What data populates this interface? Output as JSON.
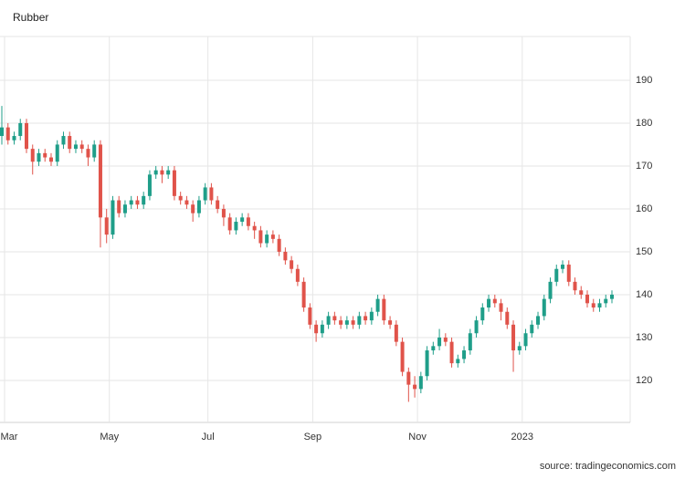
{
  "chart_data": {
    "type": "candlestick",
    "title": "Rubber",
    "source": "source: tradingeconomics.com",
    "categories": [
      "Mar",
      null,
      null,
      null,
      null,
      null,
      null,
      null,
      null,
      null,
      null,
      null,
      null,
      null,
      null,
      null,
      null,
      "May",
      null,
      null,
      null,
      null,
      null,
      null,
      null,
      null,
      null,
      null,
      null,
      null,
      null,
      null,
      null,
      "Jul",
      null,
      null,
      null,
      null,
      null,
      null,
      null,
      null,
      null,
      null,
      null,
      null,
      null,
      null,
      null,
      null,
      "Sep",
      null,
      null,
      null,
      null,
      null,
      null,
      null,
      null,
      null,
      null,
      null,
      null,
      null,
      null,
      null,
      null,
      "Nov",
      null,
      null,
      null,
      null,
      null,
      null,
      null,
      null,
      null,
      null,
      null,
      null,
      null,
      null,
      null,
      null,
      "2023",
      null,
      null,
      null,
      null,
      null,
      null,
      null,
      null,
      null,
      null,
      null,
      null,
      null,
      null,
      null
    ],
    "open": [
      177,
      179,
      176,
      177,
      180,
      174,
      171,
      173,
      172,
      171,
      175,
      177,
      174,
      175,
      174,
      172,
      175,
      158,
      154,
      162,
      159,
      161,
      162,
      161,
      163,
      168,
      169,
      168,
      169,
      163,
      162,
      161,
      159,
      162,
      165,
      162,
      160,
      158,
      155,
      157,
      158,
      156,
      155,
      152,
      154,
      153,
      150,
      148,
      146,
      143,
      137,
      133,
      131,
      133,
      135,
      134,
      133,
      134,
      133,
      135,
      134,
      136,
      139,
      134,
      133,
      129,
      122,
      119,
      118,
      121,
      127,
      128,
      130,
      129,
      124,
      125,
      127,
      131,
      134,
      137,
      139,
      138,
      136,
      133,
      127,
      128,
      131,
      133,
      135,
      139,
      143,
      146,
      147,
      143,
      141,
      140,
      138,
      137,
      138,
      139
    ],
    "high": [
      184,
      180,
      178,
      181,
      181,
      175,
      174,
      174,
      173,
      176,
      178,
      178,
      176,
      176,
      175,
      176,
      176,
      160,
      163,
      163,
      162,
      163,
      163,
      164,
      169,
      170,
      170,
      170,
      170,
      164,
      163,
      162,
      163,
      166,
      166,
      163,
      161,
      159,
      158,
      159,
      159,
      157,
      156,
      155,
      155,
      154,
      151,
      149,
      147,
      144,
      138,
      134,
      134,
      136,
      136,
      135,
      135,
      135,
      136,
      136,
      137,
      140,
      140,
      135,
      134,
      130,
      123,
      121,
      122,
      128,
      129,
      132,
      131,
      130,
      126,
      128,
      132,
      135,
      138,
      140,
      140,
      139,
      137,
      134,
      129,
      132,
      134,
      136,
      140,
      144,
      147,
      148,
      148,
      144,
      142,
      141,
      139,
      139,
      140,
      141
    ],
    "low": [
      175,
      175,
      175,
      176,
      173,
      168,
      170,
      171,
      170,
      170,
      174,
      173,
      173,
      173,
      170,
      171,
      151,
      152,
      153,
      158,
      158,
      160,
      160,
      160,
      162,
      167,
      166,
      167,
      162,
      161,
      160,
      157,
      158,
      161,
      161,
      159,
      156,
      154,
      154,
      156,
      155,
      153,
      151,
      151,
      152,
      149,
      147,
      145,
      142,
      136,
      132,
      129,
      130,
      132,
      133,
      132,
      132,
      132,
      132,
      133,
      133,
      135,
      133,
      132,
      128,
      121,
      115,
      116,
      117,
      120,
      126,
      127,
      128,
      123,
      123,
      124,
      126,
      130,
      133,
      136,
      137,
      134,
      132,
      122,
      126,
      127,
      130,
      132,
      134,
      138,
      142,
      145,
      142,
      140,
      139,
      137,
      136,
      136,
      137,
      138
    ],
    "close": [
      179,
      176,
      177,
      180,
      174,
      171,
      173,
      172,
      171,
      175,
      177,
      174,
      175,
      174,
      172,
      175,
      158,
      154,
      162,
      159,
      161,
      162,
      161,
      163,
      168,
      169,
      168,
      169,
      163,
      162,
      161,
      159,
      162,
      165,
      162,
      160,
      158,
      155,
      157,
      158,
      156,
      155,
      152,
      154,
      153,
      150,
      148,
      146,
      143,
      137,
      133,
      131,
      133,
      135,
      134,
      133,
      134,
      133,
      135,
      134,
      136,
      139,
      134,
      133,
      129,
      122,
      119,
      118,
      121,
      127,
      128,
      130,
      129,
      124,
      125,
      127,
      131,
      134,
      137,
      139,
      138,
      136,
      133,
      127,
      128,
      131,
      133,
      135,
      139,
      143,
      146,
      147,
      143,
      141,
      140,
      138,
      137,
      138,
      139,
      140
    ],
    "up_color": "#1f9e89",
    "down_color": "#e0534a",
    "ylim": [
      110.2,
      200.2
    ],
    "yticks": [
      120,
      130,
      140,
      150,
      160,
      170,
      180,
      190
    ],
    "grid": true
  }
}
